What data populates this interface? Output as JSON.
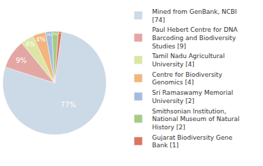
{
  "chart_data": {
    "type": "pie",
    "categories": [
      "Mined from GenBank, NCBI [74]",
      "Paul Hebert Centre for DNA Barcoding and Biodiversity Studies [9]",
      "Tamil Nadu Agricultural University [4]",
      "Centre for Biodiversity Genomics [4]",
      "Sri Ramaswamy Memorial University [2]",
      "Smithsonian Institution, National Museum of Natural History [2]",
      "Gujarat Biodiversity Gene Bank [1]"
    ],
    "values": [
      77,
      9,
      4,
      4,
      2,
      2,
      1
    ],
    "value_labels": [
      "77%",
      "9%",
      "4%",
      "4%",
      "2%",
      "2%",
      "1%"
    ],
    "colors": [
      "#ccd9e6",
      "#e3a7a3",
      "#dce5a5",
      "#f2b57e",
      "#a3bde0",
      "#a6cb84",
      "#dc7560"
    ],
    "data_labels": true,
    "legend": "right"
  }
}
